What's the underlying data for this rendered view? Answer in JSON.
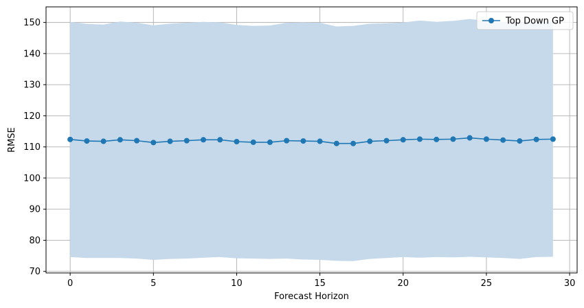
{
  "chart_data": {
    "type": "line",
    "title": "",
    "xlabel": "Forecast Horizon",
    "ylabel": "RMSE",
    "xlim": [
      -1.45,
      30.45
    ],
    "ylim": [
      69.5,
      155
    ],
    "xticks": [
      0,
      5,
      10,
      15,
      20,
      25,
      30
    ],
    "yticks": [
      70,
      80,
      90,
      100,
      110,
      120,
      130,
      140,
      150
    ],
    "grid": true,
    "legend_position": "top-right",
    "colors": {
      "line": "#1f77b4",
      "band": "#c5d9eb",
      "grid": "#b0b0b0"
    },
    "x": [
      0,
      1,
      2,
      3,
      4,
      5,
      6,
      7,
      8,
      9,
      10,
      11,
      12,
      13,
      14,
      15,
      16,
      17,
      18,
      19,
      20,
      21,
      22,
      23,
      24,
      25,
      26,
      27,
      28,
      29
    ],
    "series": [
      {
        "name": "Top Down GP",
        "marker": "circle",
        "values": [
          112.4,
          111.9,
          111.8,
          112.3,
          112.0,
          111.4,
          111.8,
          112.0,
          112.3,
          112.3,
          111.7,
          111.5,
          111.5,
          112.0,
          111.9,
          111.8,
          111.1,
          111.1,
          111.8,
          112.0,
          112.3,
          112.5,
          112.4,
          112.5,
          112.9,
          112.5,
          112.2,
          111.9,
          112.4,
          112.5
        ],
        "band_upper": [
          150.2,
          149.5,
          149.3,
          150.3,
          149.9,
          149.1,
          149.6,
          149.9,
          150.2,
          150.0,
          149.2,
          148.9,
          149.0,
          149.9,
          150.0,
          149.9,
          148.7,
          148.9,
          149.6,
          149.7,
          150.0,
          150.6,
          150.2,
          150.5,
          151.1,
          150.5,
          150.1,
          149.8,
          150.2,
          150.3
        ],
        "band_lower": [
          74.6,
          74.3,
          74.3,
          74.3,
          74.1,
          73.7,
          74.0,
          74.1,
          74.4,
          74.6,
          74.2,
          74.1,
          74.0,
          74.1,
          73.8,
          73.7,
          73.4,
          73.3,
          74.0,
          74.3,
          74.6,
          74.4,
          74.6,
          74.5,
          74.7,
          74.5,
          74.3,
          74.0,
          74.6,
          74.7
        ]
      }
    ]
  }
}
